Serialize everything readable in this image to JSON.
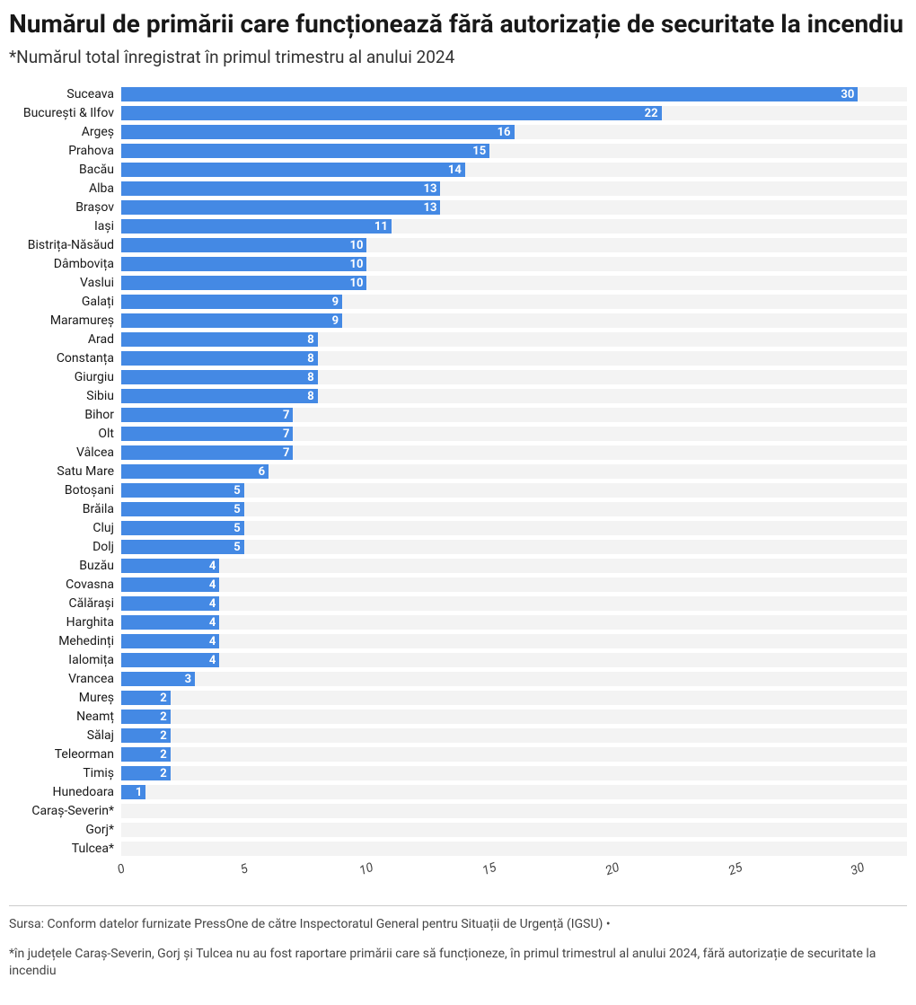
{
  "title": "Numărul de primării care funcționează fără autorizație de securitate la incendiu",
  "subtitle": "*Numărul total înregistrat în primul trimestru al anului 2024",
  "chart": {
    "type": "bar",
    "orientation": "horizontal",
    "bar_color": "#4489e4",
    "track_color": "#f3f3f3",
    "value_text_color": "#ffffff",
    "label_fontsize": 14,
    "value_fontsize": 13,
    "value_fontweight": 700,
    "xmax": 32,
    "xticks": [
      0,
      5,
      10,
      15,
      20,
      25,
      30
    ],
    "tick_font_style": "italic",
    "rows": [
      {
        "label": "Suceava",
        "value": 30
      },
      {
        "label": "București & Ilfov",
        "value": 22
      },
      {
        "label": "Argeș",
        "value": 16
      },
      {
        "label": "Prahova",
        "value": 15
      },
      {
        "label": "Bacău",
        "value": 14
      },
      {
        "label": "Alba",
        "value": 13
      },
      {
        "label": "Brașov",
        "value": 13
      },
      {
        "label": "Iași",
        "value": 11
      },
      {
        "label": "Bistrița-Năsăud",
        "value": 10
      },
      {
        "label": "Dâmbovița",
        "value": 10
      },
      {
        "label": "Vaslui",
        "value": 10
      },
      {
        "label": "Galați",
        "value": 9
      },
      {
        "label": "Maramureș",
        "value": 9
      },
      {
        "label": "Arad",
        "value": 8
      },
      {
        "label": "Constanța",
        "value": 8
      },
      {
        "label": "Giurgiu",
        "value": 8
      },
      {
        "label": "Sibiu",
        "value": 8
      },
      {
        "label": "Bihor",
        "value": 7
      },
      {
        "label": "Olt",
        "value": 7
      },
      {
        "label": "Vâlcea",
        "value": 7
      },
      {
        "label": "Satu Mare",
        "value": 6
      },
      {
        "label": "Botoșani",
        "value": 5
      },
      {
        "label": "Brăila",
        "value": 5
      },
      {
        "label": "Cluj",
        "value": 5
      },
      {
        "label": "Dolj",
        "value": 5
      },
      {
        "label": "Buzău",
        "value": 4
      },
      {
        "label": "Covasna",
        "value": 4
      },
      {
        "label": "Călărași",
        "value": 4
      },
      {
        "label": "Harghita",
        "value": 4
      },
      {
        "label": "Mehedinți",
        "value": 4
      },
      {
        "label": "Ialomița",
        "value": 4
      },
      {
        "label": "Vrancea",
        "value": 3
      },
      {
        "label": "Mureș",
        "value": 2
      },
      {
        "label": "Neamț",
        "value": 2
      },
      {
        "label": "Sălaj",
        "value": 2
      },
      {
        "label": "Teleorman",
        "value": 2
      },
      {
        "label": "Timiș",
        "value": 2
      },
      {
        "label": "Hunedoara",
        "value": 1
      },
      {
        "label": "Caraș-Severin*",
        "value": 0
      },
      {
        "label": "Gorj*",
        "value": 0
      },
      {
        "label": "Tulcea*",
        "value": 0
      }
    ]
  },
  "source": "Sursa: Conform datelor furnizate PressOne de către Inspectoratul General pentru Situații de Urgență (IGSU) •",
  "footnote": "*în județele Caraș-Severin, Gorj și Tulcea nu au fost raportare primării care să funcționeze, în primul trimestrul al anului 2024, fără autorizație de securitate la incendiu"
}
